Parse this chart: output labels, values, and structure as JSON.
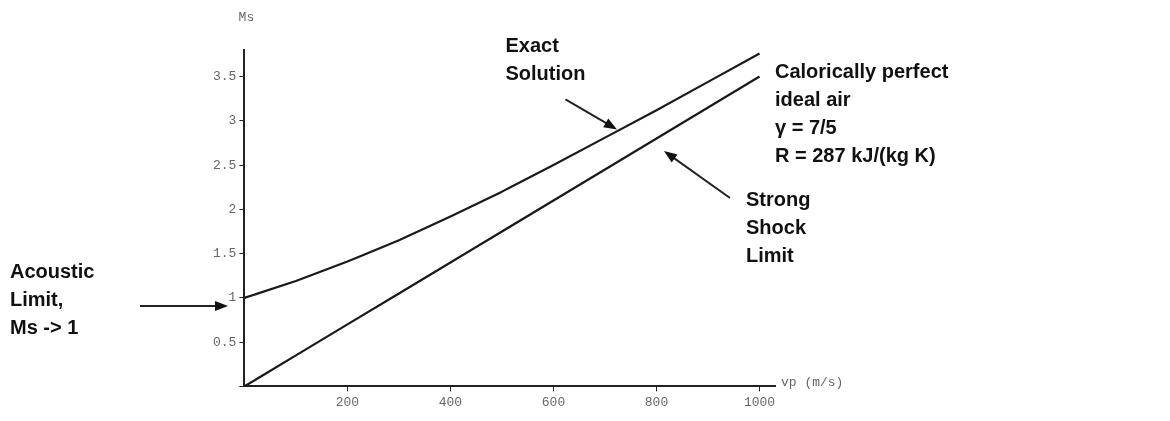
{
  "chart_data": {
    "type": "line",
    "xlabel": "vp (m/s)",
    "ylabel": "Ms",
    "x": [
      0,
      100,
      200,
      300,
      400,
      500,
      600,
      700,
      800,
      900,
      1000
    ],
    "series": [
      {
        "color": "#1a1a1a",
        "values": [
          1,
          1.19,
          1.41,
          1.65,
          1.92,
          2.2,
          2.5,
          2.81,
          3.12,
          3.44,
          3.76
        ]
      },
      {
        "color": "#1a1a1a",
        "values": [
          0,
          0.35,
          0.7,
          1.05,
          1.4,
          1.75,
          2.1,
          2.45,
          2.8,
          3.15,
          3.5
        ]
      }
    ],
    "xlim": [
      0,
      1030
    ],
    "xticks": [
      200,
      400,
      600,
      800,
      1000
    ],
    "ylim": [
      0,
      3.8
    ],
    "yticks": [
      {
        "value": 0,
        "label": null
      },
      0.5,
      1,
      1.5,
      2,
      2.5,
      3,
      3.5
    ],
    "grid": false,
    "legend": false,
    "marker": "none",
    "line_style": "solid",
    "annotations": [
      {
        "text": "Exact\nSolution",
        "x": 730,
        "y": 2.88
      },
      "Strong\nShock\nLimit",
      "Acoustic\nLimit,\nMs -> 1",
      "Calorically perfect\nideal air\nγ = 7/5\nR = 287 kJ/(kg K)"
    ]
  }
}
